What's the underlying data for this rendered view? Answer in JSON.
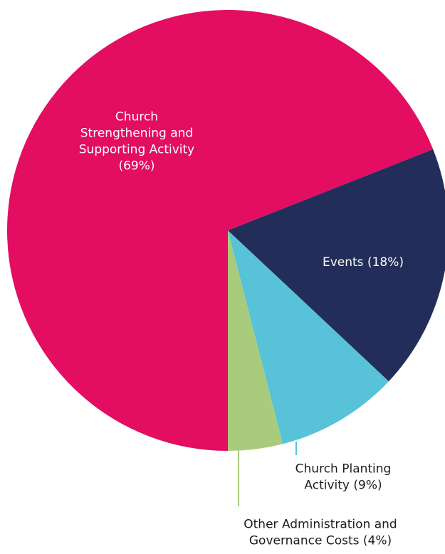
{
  "chart_data": {
    "type": "pie",
    "slices": [
      {
        "label_lines": [
          "Church",
          "Strengthening and",
          "Supporting Activity",
          "(69%)"
        ],
        "value": 69,
        "color": "#e30d62"
      },
      {
        "label_lines": [
          "Events (18%)"
        ],
        "value": 18,
        "color": "#232d59"
      },
      {
        "label_lines": [
          "Church Planting",
          "Activity (9%)"
        ],
        "value": 9,
        "color": "#57c2d8"
      },
      {
        "label_lines": [
          "Other Administration and",
          "Governance Costs (4%)"
        ],
        "value": 4,
        "color": "#a8cc7c"
      }
    ],
    "legend": "none"
  }
}
